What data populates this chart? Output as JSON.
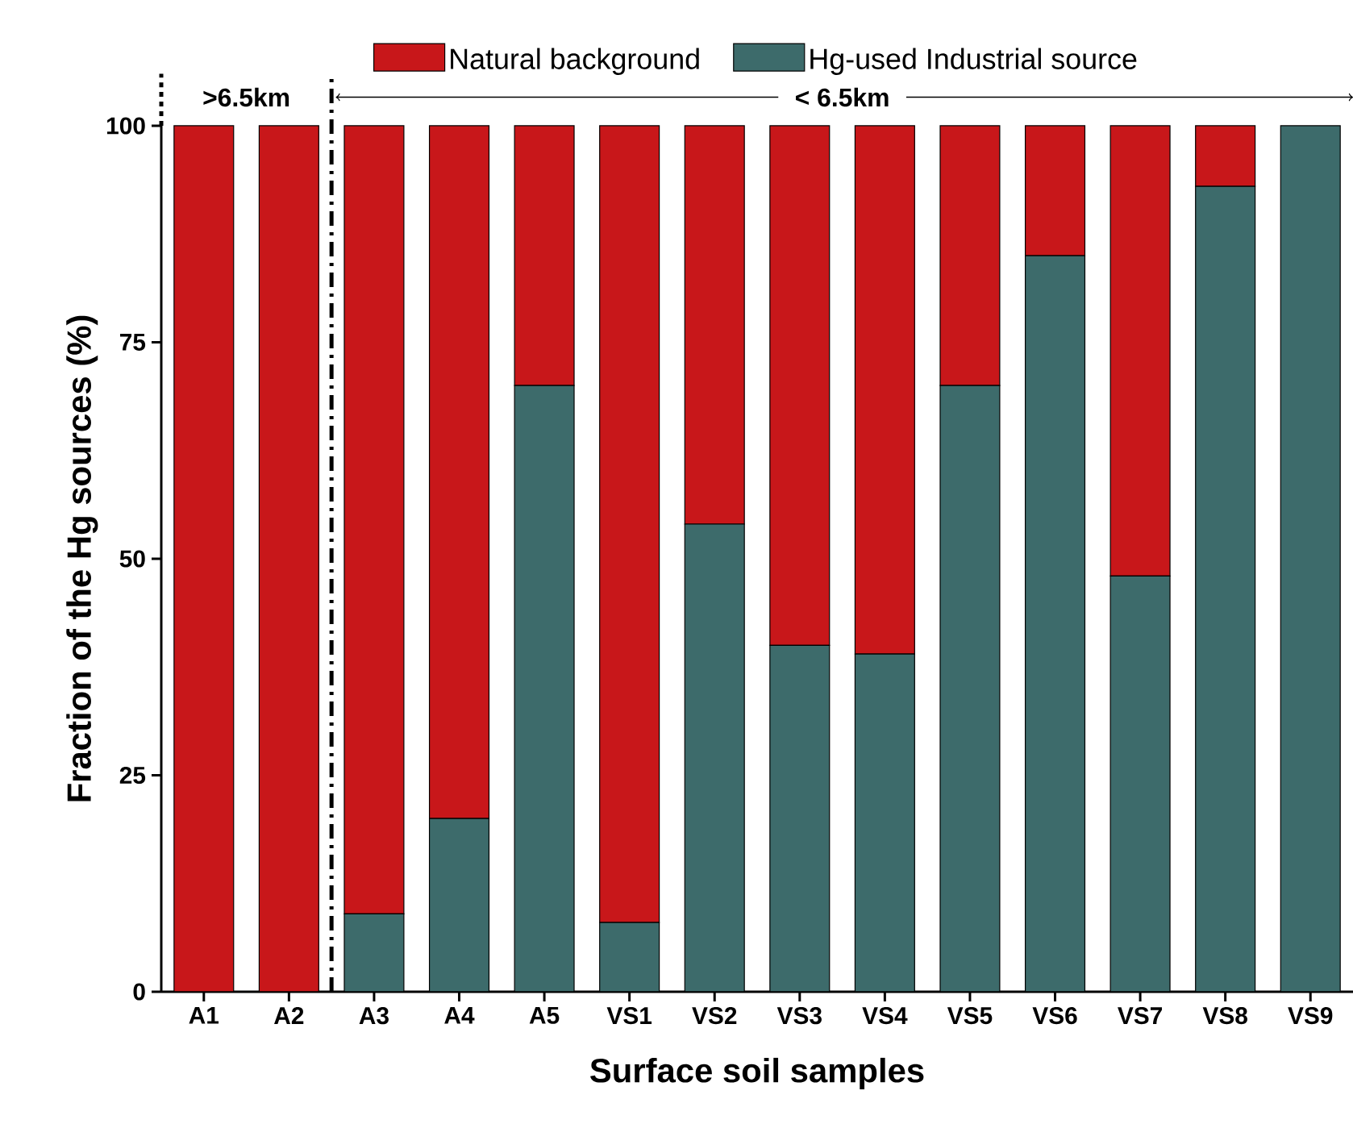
{
  "chart_data": {
    "type": "bar",
    "stacked": true,
    "xlabel": "Surface soil samples",
    "ylabel": "Fraction of the Hg sources (%)",
    "categories": [
      "A1",
      "A2",
      "A3",
      "A4",
      "A5",
      "VS1",
      "VS2",
      "VS3",
      "VS4",
      "VS5",
      "VS6",
      "VS7",
      "VS8",
      "VS9"
    ],
    "series": [
      {
        "name": "Hg-used Industrial source",
        "color": "#3d6b6b",
        "values": [
          0,
          0,
          9,
          20,
          70,
          8,
          54,
          40,
          39,
          70,
          85,
          48,
          93,
          100
        ]
      },
      {
        "name": "Natural background",
        "color": "#c8171a",
        "values": [
          100,
          100,
          91,
          80,
          30,
          92,
          46,
          60,
          61,
          30,
          15,
          52,
          7,
          0
        ]
      }
    ],
    "ylim": [
      0,
      100
    ],
    "yticks": [
      0,
      25,
      50,
      75,
      100
    ],
    "legend": "top",
    "annotations": [
      ">6.5km",
      "< 6.5km"
    ]
  }
}
